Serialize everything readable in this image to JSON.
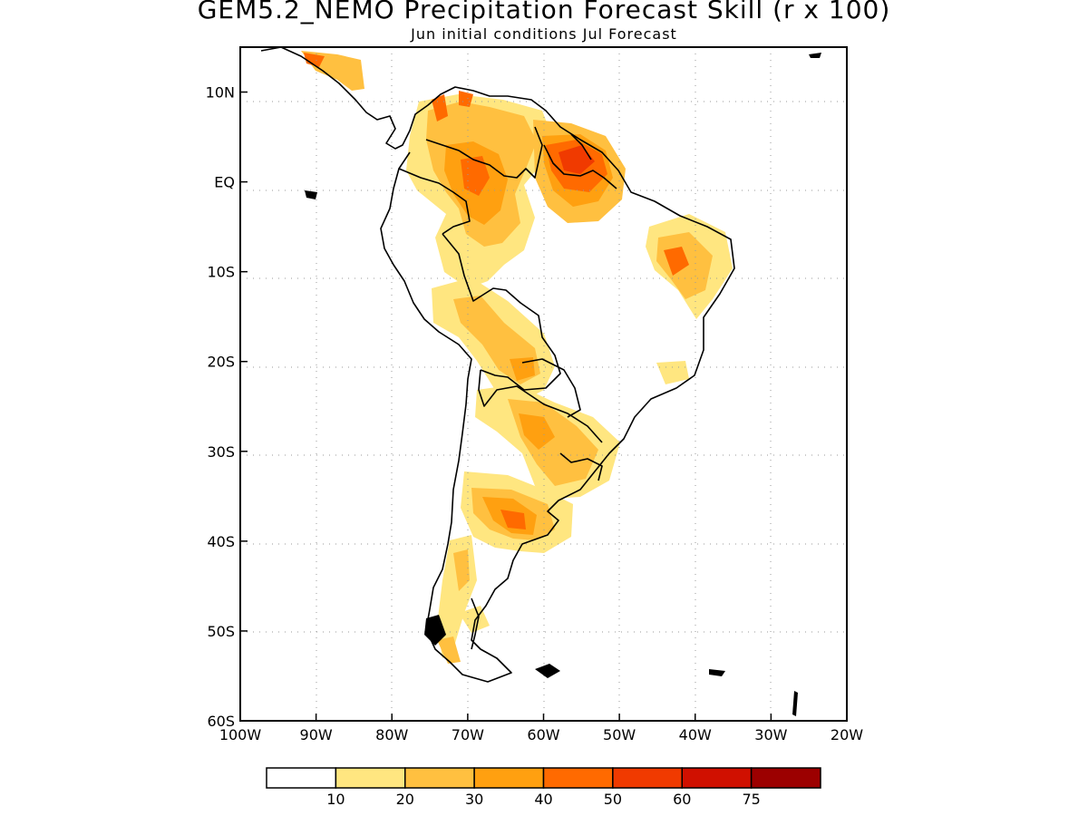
{
  "title": "GEM5.2_NEMO Precipitation Forecast Skill (r x 100)",
  "subtitle": "Jun initial conditions  Jul Forecast",
  "map": {
    "lon_range": [
      -100,
      -20
    ],
    "lat_range": [
      -60,
      15
    ],
    "y_ticks": [
      {
        "lat": 10,
        "label": "10N"
      },
      {
        "lat": 0,
        "label": "EQ"
      },
      {
        "lat": -10,
        "label": "10S"
      },
      {
        "lat": -20,
        "label": "20S"
      },
      {
        "lat": -30,
        "label": "30S"
      },
      {
        "lat": -40,
        "label": "40S"
      },
      {
        "lat": -50,
        "label": "50S"
      },
      {
        "lat": -60,
        "label": "60S"
      }
    ],
    "x_ticks": [
      {
        "lon": -100,
        "label": "100W"
      },
      {
        "lon": -90,
        "label": "90W"
      },
      {
        "lon": -80,
        "label": "80W"
      },
      {
        "lon": -70,
        "label": "70W"
      },
      {
        "lon": -60,
        "label": "60W"
      },
      {
        "lon": -50,
        "label": "50W"
      },
      {
        "lon": -40,
        "label": "40W"
      },
      {
        "lon": -30,
        "label": "30W"
      },
      {
        "lon": -20,
        "label": "20W"
      }
    ],
    "gridlines": "dotted"
  },
  "colorbar": {
    "labels": [
      "10",
      "20",
      "30",
      "40",
      "50",
      "60",
      "75"
    ],
    "colors": [
      "#ffffff",
      "#ffe680",
      "#ffc040",
      "#ffa010",
      "#ff6a00",
      "#f03a00",
      "#d01000",
      "#9c0000"
    ]
  }
}
